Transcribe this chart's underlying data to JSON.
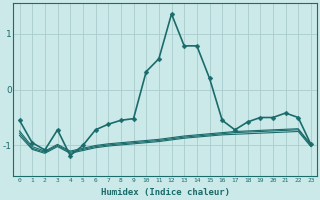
{
  "xlabel": "Humidex (Indice chaleur)",
  "ylabel": "",
  "background_color": "#cce9e9",
  "grid_color": "#aacccc",
  "line_color": "#1a6b6b",
  "xlim": [
    -0.5,
    23.5
  ],
  "ylim": [
    -1.55,
    1.55
  ],
  "yticks": [
    -1,
    0,
    1
  ],
  "xticks": [
    0,
    1,
    2,
    3,
    4,
    5,
    6,
    7,
    8,
    9,
    10,
    11,
    12,
    13,
    14,
    15,
    16,
    17,
    18,
    19,
    20,
    21,
    22,
    23
  ],
  "series": [
    {
      "x": [
        0,
        1,
        2,
        3,
        4,
        5,
        6,
        7,
        8,
        9,
        10,
        11,
        12,
        13,
        14,
        15,
        16,
        17,
        18,
        19,
        20,
        21,
        22,
        23
      ],
      "y": [
        -0.55,
        -0.95,
        -1.08,
        -0.72,
        -1.18,
        -1.0,
        -0.72,
        -0.62,
        -0.55,
        -0.52,
        0.32,
        0.55,
        1.35,
        0.78,
        0.78,
        0.2,
        -0.55,
        -0.72,
        -0.58,
        -0.5,
        -0.5,
        -0.42,
        -0.5,
        -0.98
      ],
      "marker": "D",
      "markersize": 2.5,
      "linewidth": 1.2
    },
    {
      "x": [
        0,
        1,
        2,
        3,
        4,
        5,
        6,
        7,
        8,
        9,
        10,
        11,
        12,
        13,
        14,
        15,
        16,
        17,
        18,
        19,
        20,
        21,
        22,
        23
      ],
      "y": [
        -0.78,
        -1.05,
        -1.12,
        -1.0,
        -1.12,
        -1.07,
        -1.02,
        -0.99,
        -0.97,
        -0.95,
        -0.93,
        -0.91,
        -0.88,
        -0.85,
        -0.83,
        -0.81,
        -0.79,
        -0.77,
        -0.76,
        -0.75,
        -0.74,
        -0.73,
        -0.72,
        -1.0
      ],
      "marker": null,
      "markersize": 0,
      "linewidth": 0.8
    },
    {
      "x": [
        0,
        1,
        2,
        3,
        4,
        5,
        6,
        7,
        8,
        9,
        10,
        11,
        12,
        13,
        14,
        15,
        16,
        17,
        18,
        19,
        20,
        21,
        22,
        23
      ],
      "y": [
        -0.82,
        -1.07,
        -1.14,
        -1.02,
        -1.14,
        -1.09,
        -1.04,
        -1.01,
        -0.99,
        -0.97,
        -0.95,
        -0.93,
        -0.9,
        -0.87,
        -0.85,
        -0.83,
        -0.81,
        -0.8,
        -0.79,
        -0.78,
        -0.77,
        -0.76,
        -0.75,
        -1.02
      ],
      "marker": null,
      "markersize": 0,
      "linewidth": 0.8
    },
    {
      "x": [
        0,
        1,
        2,
        3,
        4,
        5,
        6,
        7,
        8,
        9,
        10,
        11,
        12,
        13,
        14,
        15,
        16,
        17,
        18,
        19,
        20,
        21,
        22,
        23
      ],
      "y": [
        -0.74,
        -1.02,
        -1.1,
        -0.98,
        -1.1,
        -1.05,
        -1.0,
        -0.97,
        -0.95,
        -0.93,
        -0.91,
        -0.89,
        -0.86,
        -0.83,
        -0.81,
        -0.79,
        -0.77,
        -0.75,
        -0.74,
        -0.73,
        -0.72,
        -0.71,
        -0.7,
        -0.98
      ],
      "marker": null,
      "markersize": 0,
      "linewidth": 0.8
    }
  ]
}
